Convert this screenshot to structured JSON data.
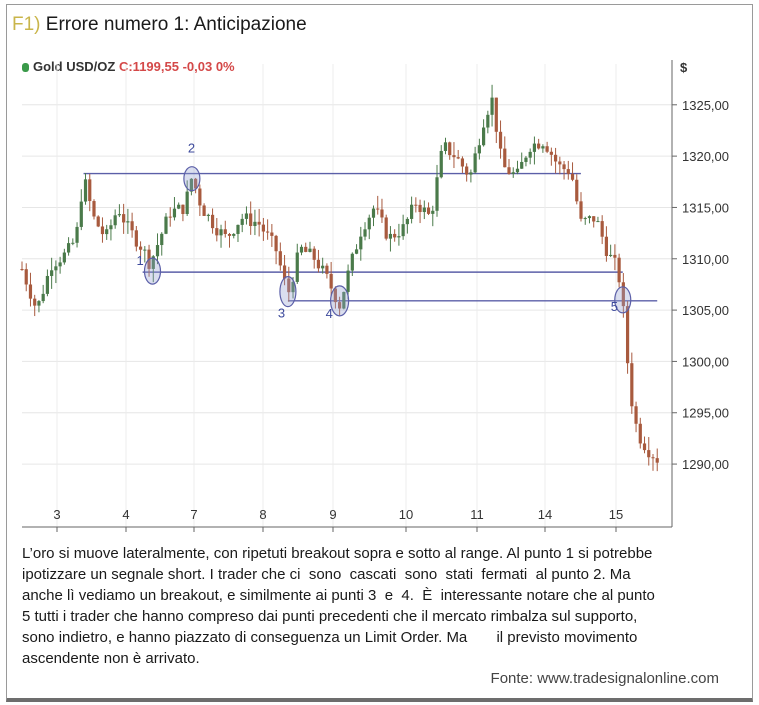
{
  "figure": {
    "number": "F1)",
    "title": "Errore numero 1: Anticipazione"
  },
  "quote": {
    "instrument": "Gold USD/OZ",
    "value": "C:1199,55 -0,03 0%"
  },
  "chart_data": {
    "type": "candlestick",
    "currency_label": "$",
    "y_ticks": [
      "1325,00",
      "1320,00",
      "1315,00",
      "1310,00",
      "1305,00",
      "1300,00",
      "1295,00",
      "1290,00"
    ],
    "y_tick_values": [
      1325,
      1320,
      1315,
      1310,
      1305,
      1300,
      1295,
      1290
    ],
    "x_ticks": [
      "3",
      "4",
      "7",
      "8",
      "9",
      "10",
      "11",
      "14",
      "15"
    ],
    "ylim": [
      1286.5,
      1328
    ],
    "grid": true,
    "price_path": [
      [
        0.0,
        1309
      ],
      [
        0.6,
        1305
      ],
      [
        1.2,
        1309.5
      ],
      [
        1.8,
        1310.5
      ],
      [
        2.2,
        1312
      ],
      [
        2.5,
        1318
      ],
      [
        2.9,
        1314
      ],
      [
        3.4,
        1312
      ],
      [
        3.9,
        1315
      ],
      [
        4.3,
        1313
      ],
      [
        4.9,
        1311
      ],
      [
        5.2,
        1309.5
      ],
      [
        5.6,
        1312
      ],
      [
        6.0,
        1314.5
      ],
      [
        6.6,
        1315
      ],
      [
        6.9,
        1318
      ],
      [
        7.3,
        1315
      ],
      [
        7.9,
        1313
      ],
      [
        8.3,
        1312
      ],
      [
        8.9,
        1314
      ],
      [
        9.6,
        1313.5
      ],
      [
        10.3,
        1311
      ],
      [
        10.8,
        1306.5
      ],
      [
        11.3,
        1311
      ],
      [
        11.9,
        1310
      ],
      [
        12.4,
        1308
      ],
      [
        12.9,
        1305.5
      ],
      [
        13.3,
        1309
      ],
      [
        13.8,
        1313
      ],
      [
        14.3,
        1315
      ],
      [
        14.9,
        1312
      ],
      [
        15.5,
        1313
      ],
      [
        16.0,
        1315.5
      ],
      [
        16.6,
        1314
      ],
      [
        17.1,
        1321
      ],
      [
        17.6,
        1320
      ],
      [
        18.2,
        1318
      ],
      [
        18.8,
        1324
      ],
      [
        19.1,
        1325.5
      ],
      [
        19.5,
        1319
      ],
      [
        20.1,
        1318
      ],
      [
        20.6,
        1321
      ],
      [
        21.2,
        1321.5
      ],
      [
        21.8,
        1319
      ],
      [
        22.3,
        1318.5
      ],
      [
        22.7,
        1313.5
      ],
      [
        23.3,
        1314
      ],
      [
        23.8,
        1310.5
      ],
      [
        24.2,
        1309
      ],
      [
        24.4,
        1305.5
      ],
      [
        24.7,
        1297
      ],
      [
        25.0,
        1293
      ],
      [
        25.4,
        1291.5
      ],
      [
        25.8,
        1290.5
      ]
    ],
    "horizontal_levels": [
      {
        "value": 1318.3,
        "from": 2.5,
        "to": 22.7
      },
      {
        "value": 1308.7,
        "from": 4.9,
        "to": 24.4
      },
      {
        "value": 1305.9,
        "from": 10.8,
        "to": 25.8
      }
    ],
    "annotations": [
      {
        "label": "1",
        "x": 5.3,
        "y": 1308.8
      },
      {
        "label": "2",
        "x": 6.9,
        "y": 1317.8
      },
      {
        "label": "3",
        "x": 10.8,
        "y": 1306.8
      },
      {
        "label": "4",
        "x": 12.9,
        "y": 1305.9
      },
      {
        "label": "5",
        "x": 24.4,
        "y": 1306
      }
    ]
  },
  "caption": {
    "text": "L’oro si muove lateralmente, con ripetuti breakout sopra e sotto al range. Al punto 1 si potrebbe\nipotizzare un segnale short. I trader che ci  sono  cascati  sono  stati  fermati  al punto 2. Ma\nanche lì vediamo un breakout, e similmente ai punti 3  e  4.  È  interessante notare che al punto\n5 tutti i trader che hanno compreso dai punti precedenti che il mercato rimbalza sul supporto,\nsono indietro, e hanno piazzato di conseguenza un Limit Order. Ma       il previsto movimento\nascendente non è arrivato."
  },
  "source": {
    "text": "Fonte: www.tradesignalonline.com"
  }
}
